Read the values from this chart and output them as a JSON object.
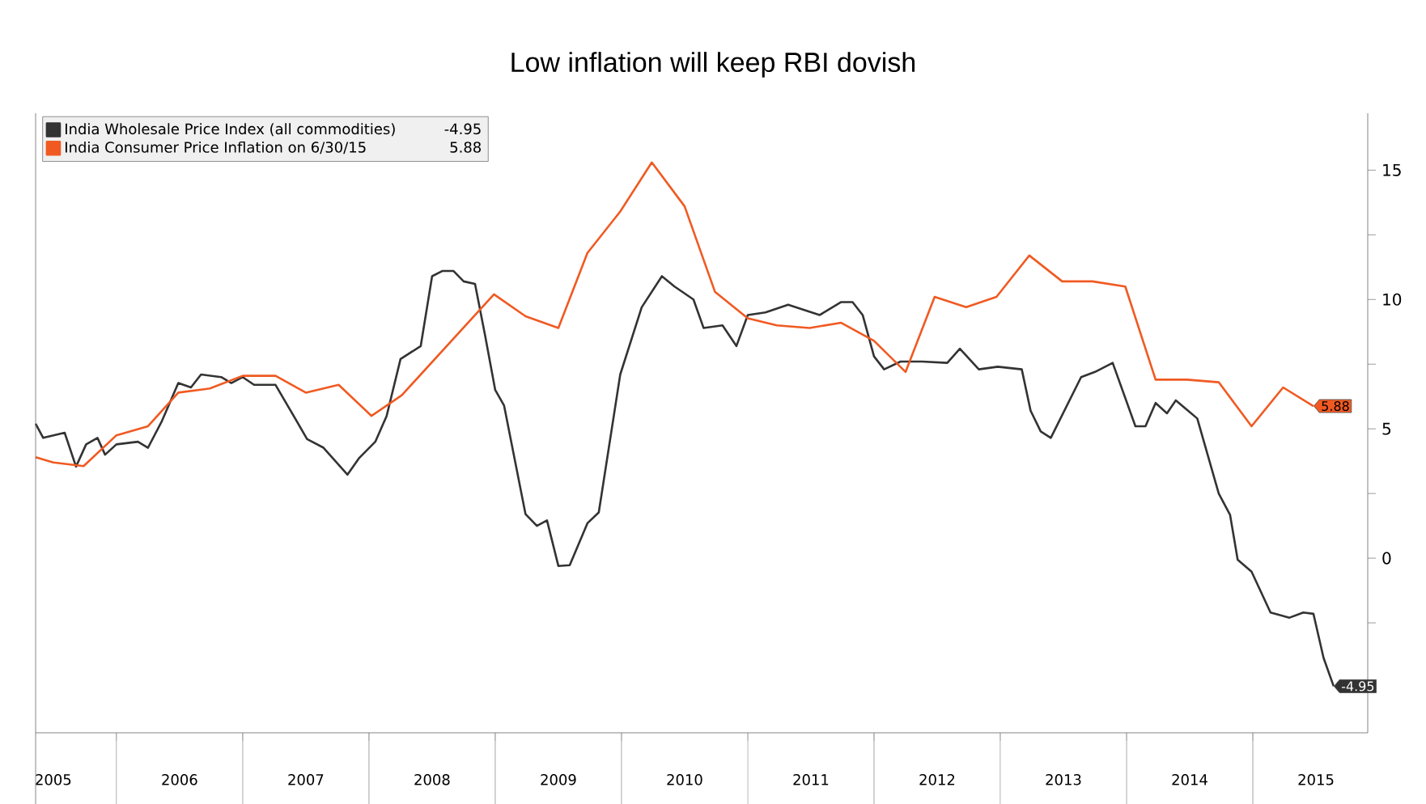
{
  "chart_data": {
    "type": "line",
    "title": "Low inflation will keep RBI dovish",
    "xlim": [
      2005.36,
      2015.91
    ],
    "ylim": [
      -6.75,
      17.2
    ],
    "xticks": [
      {
        "value": 2005.5,
        "label": "2005"
      },
      {
        "value": 2006,
        "label": null
      },
      {
        "value": 2006.5,
        "label": "2006"
      },
      {
        "value": 2007,
        "label": null
      },
      {
        "value": 2007.5,
        "label": "2007"
      },
      {
        "value": 2008,
        "label": null
      },
      {
        "value": 2008.5,
        "label": "2008"
      },
      {
        "value": 2009,
        "label": null
      },
      {
        "value": 2009.5,
        "label": "2009"
      },
      {
        "value": 2010,
        "label": null
      },
      {
        "value": 2010.5,
        "label": "2010"
      },
      {
        "value": 2011,
        "label": null
      },
      {
        "value": 2011.5,
        "label": "2011"
      },
      {
        "value": 2012,
        "label": null
      },
      {
        "value": 2012.5,
        "label": "2012"
      },
      {
        "value": 2013,
        "label": null
      },
      {
        "value": 2013.5,
        "label": "2013"
      },
      {
        "value": 2014,
        "label": null
      },
      {
        "value": 2014.5,
        "label": "2014"
      },
      {
        "value": 2015,
        "label": null
      },
      {
        "value": 2015.5,
        "label": "2015"
      }
    ],
    "yticks": [
      {
        "value": -2.5,
        "label": null
      },
      0,
      {
        "value": 2.5,
        "label": null
      },
      5,
      {
        "value": 7.5,
        "label": null
      },
      10,
      {
        "value": 12.5,
        "label": null
      },
      15
    ],
    "legend": "top left",
    "grid": false,
    "marker": "none",
    "line_style": "solid",
    "series": [
      {
        "name": "India Wholesale Price Index (all commodities)",
        "color": "#333333",
        "x": [
          2005.36,
          2005.42,
          2005.59,
          2005.68,
          2005.76,
          2005.85,
          2005.91,
          2006.0,
          2006.17,
          2006.25,
          2006.36,
          2006.49,
          2006.59,
          2006.67,
          2006.83,
          2006.91,
          2007.0,
          2007.09,
          2007.26,
          2007.38,
          2007.51,
          2007.64,
          2007.83,
          2007.92,
          2008.05,
          2008.14,
          2008.25,
          2008.41,
          2008.5,
          2008.58,
          2008.67,
          2008.75,
          2008.84,
          2008.92,
          2009.0,
          2009.07,
          2009.24,
          2009.33,
          2009.41,
          2009.5,
          2009.59,
          2009.73,
          2009.82,
          2009.99,
          2010.16,
          2010.32,
          2010.42,
          2010.57,
          2010.65,
          2010.8,
          2010.91,
          2011.0,
          2011.14,
          2011.32,
          2011.57,
          2011.74,
          2011.83,
          2011.91,
          2012.0,
          2012.08,
          2012.21,
          2012.38,
          2012.58,
          2012.68,
          2012.83,
          2012.98,
          2013.17,
          2013.24,
          2013.32,
          2013.4,
          2013.64,
          2013.75,
          2013.89,
          2014.07,
          2014.15,
          2014.23,
          2014.32,
          2014.39,
          2014.56,
          2014.73,
          2014.82,
          2014.88,
          2014.99,
          2015.14,
          2015.29,
          2015.4,
          2015.48,
          2015.56,
          2015.64
        ],
        "values": [
          5.2,
          4.65,
          4.85,
          3.54,
          4.4,
          4.65,
          4.0,
          4.4,
          4.5,
          4.27,
          5.3,
          6.77,
          6.6,
          7.1,
          7.0,
          6.77,
          7.0,
          6.7,
          6.7,
          5.7,
          4.6,
          4.27,
          3.23,
          3.86,
          4.5,
          5.5,
          7.7,
          8.2,
          10.9,
          11.1,
          11.1,
          10.7,
          10.6,
          8.6,
          6.5,
          5.9,
          1.7,
          1.25,
          1.46,
          -0.3,
          -0.27,
          1.35,
          1.77,
          7.1,
          9.7,
          10.9,
          10.5,
          10.0,
          8.9,
          9.0,
          8.2,
          9.4,
          9.5,
          9.8,
          9.4,
          9.9,
          9.9,
          9.4,
          7.8,
          7.3,
          7.6,
          7.6,
          7.55,
          8.1,
          7.3,
          7.4,
          7.3,
          5.7,
          4.9,
          4.65,
          7.0,
          7.2,
          7.55,
          5.1,
          5.1,
          6.0,
          5.6,
          6.1,
          5.4,
          2.5,
          1.67,
          -0.06,
          -0.52,
          -2.1,
          -2.3,
          -2.1,
          -2.15,
          -3.85,
          -4.95
        ],
        "value_labels": [
          null,
          null,
          null,
          null,
          null,
          null,
          null,
          null,
          null,
          null,
          null,
          null,
          null,
          null,
          null,
          null,
          null,
          null,
          null,
          null,
          null,
          null,
          null,
          null,
          null,
          null,
          null,
          null,
          null,
          null,
          null,
          null,
          null,
          null,
          null,
          null,
          null,
          null,
          null,
          null,
          null,
          null,
          null,
          null,
          null,
          null,
          null,
          null,
          null,
          null,
          null,
          null,
          null,
          null,
          null,
          null,
          null,
          null,
          null,
          null,
          null,
          null,
          null,
          null,
          null,
          null,
          null,
          null,
          null,
          null,
          null,
          null,
          null,
          null,
          null,
          null,
          null,
          null,
          null,
          null,
          null,
          null,
          null,
          null,
          null,
          null,
          null,
          null,
          "-4.95"
        ]
      },
      {
        "name": "India Consumer Price Inflation on 6/30/15",
        "color": "#f05a22",
        "x": [
          2005.36,
          2005.5,
          2005.74,
          2006.0,
          2006.25,
          2006.49,
          2006.74,
          2007.0,
          2007.26,
          2007.5,
          2007.76,
          2008.02,
          2008.26,
          2008.99,
          2009.24,
          2009.5,
          2009.73,
          2009.99,
          2010.24,
          2010.5,
          2010.74,
          2011.0,
          2011.23,
          2011.49,
          2011.74,
          2012.0,
          2012.25,
          2012.48,
          2012.73,
          2012.97,
          2013.23,
          2013.49,
          2013.73,
          2013.99,
          2014.23,
          2014.48,
          2014.73,
          2014.99,
          2015.24,
          2015.48
        ],
        "values": [
          3.9,
          3.7,
          3.56,
          4.75,
          5.1,
          6.4,
          6.56,
          7.05,
          7.05,
          6.4,
          6.7,
          5.5,
          6.3,
          10.2,
          9.35,
          8.9,
          11.8,
          13.4,
          15.3,
          13.6,
          10.3,
          9.27,
          9.0,
          8.9,
          9.1,
          8.4,
          7.2,
          10.1,
          9.7,
          10.1,
          11.7,
          10.7,
          10.7,
          10.5,
          6.9,
          6.9,
          6.8,
          5.1,
          6.6,
          5.88
        ],
        "value_labels": [
          null,
          null,
          null,
          null,
          null,
          null,
          null,
          null,
          null,
          null,
          null,
          null,
          null,
          null,
          null,
          null,
          null,
          null,
          null,
          null,
          null,
          null,
          null,
          null,
          null,
          null,
          null,
          null,
          null,
          null,
          null,
          null,
          null,
          null,
          null,
          null,
          null,
          null,
          null,
          "5.88"
        ]
      }
    ]
  }
}
